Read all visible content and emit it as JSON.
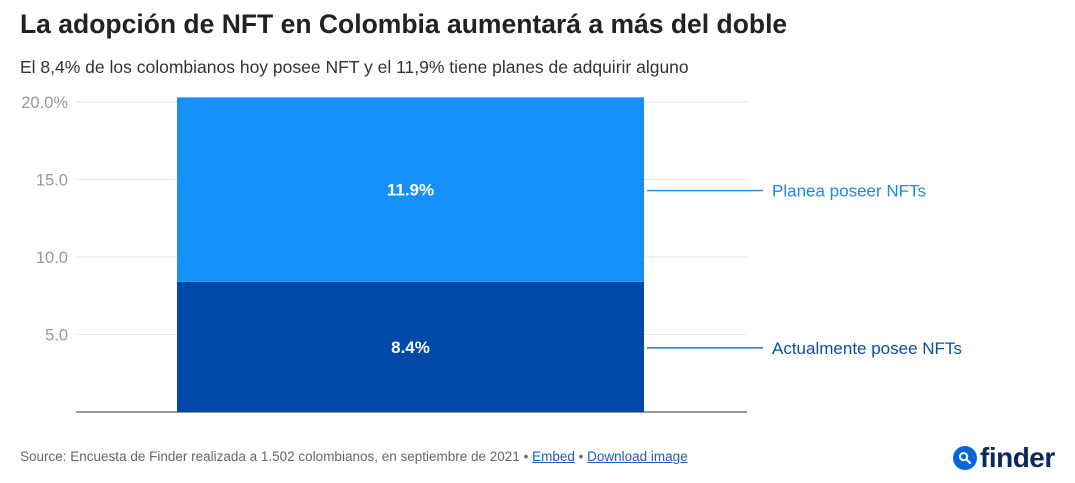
{
  "colors": {
    "planea": "#1590f8",
    "actual": "#0049ab",
    "planea_label": "#1a8be0",
    "actual_label": "#0a4fa6",
    "grid": "#e6e6e6",
    "axis": "#333333",
    "tick": "#999999",
    "logo": "#0b2a5c"
  },
  "footer": {
    "source": "Source: Encuesta de Finder realizada a 1.502 colombianos, en septiembre de 2021",
    "sep": "•",
    "embed": "Embed",
    "download": "Download image"
  },
  "logo": {
    "icon": "search-icon",
    "text": "finder"
  },
  "chart_data": {
    "type": "bar",
    "stacked": true,
    "title": "La adopción de NFT en Colombia aumentará a más del doble",
    "subtitle": "El 8,4% de los colombianos hoy posee NFT y el 11,9% tiene planes de adquirir alguno",
    "xlabel": "",
    "ylabel": "",
    "ylim": [
      0,
      20
    ],
    "yticks": [
      5,
      10,
      15,
      20
    ],
    "ytick_labels": [
      "5.0",
      "10.0",
      "15.0",
      "20.0%"
    ],
    "grid": true,
    "categories": [
      ""
    ],
    "series": [
      {
        "name": "Actualmente posee NFTs",
        "values": [
          8.4
        ],
        "data_label": "8.4%"
      },
      {
        "name": "Planea poseer NFTs",
        "values": [
          11.9
        ],
        "data_label": "11.9%"
      }
    ]
  }
}
